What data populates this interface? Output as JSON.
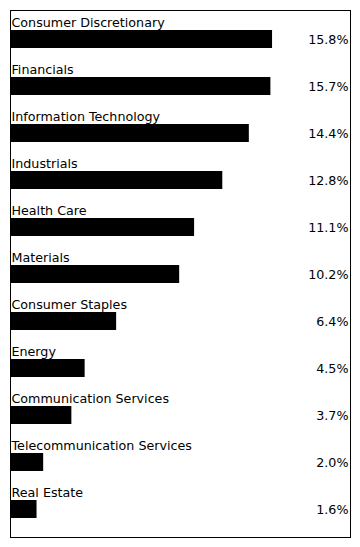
{
  "chart_data": {
    "type": "bar",
    "orientation": "horizontal",
    "categories": [
      "Consumer Discretionary",
      "Financials",
      "Information Technology",
      "Industrials",
      "Health Care",
      "Materials",
      "Consumer Staples",
      "Energy",
      "Communication Services",
      "Telecommunication Services",
      "Real Estate"
    ],
    "values": [
      15.8,
      15.7,
      14.4,
      12.8,
      11.1,
      10.2,
      6.4,
      4.5,
      3.7,
      2.0,
      1.6
    ],
    "value_labels": [
      "15.8%",
      "15.7%",
      "14.4%",
      "12.8%",
      "11.1%",
      "10.2%",
      "6.4%",
      "4.5%",
      "3.7%",
      "2.0%",
      "1.6%"
    ],
    "color": "#000000",
    "xlim": [
      0,
      20.5
    ],
    "grid": false,
    "data_labels": true,
    "tick_labels": false
  }
}
